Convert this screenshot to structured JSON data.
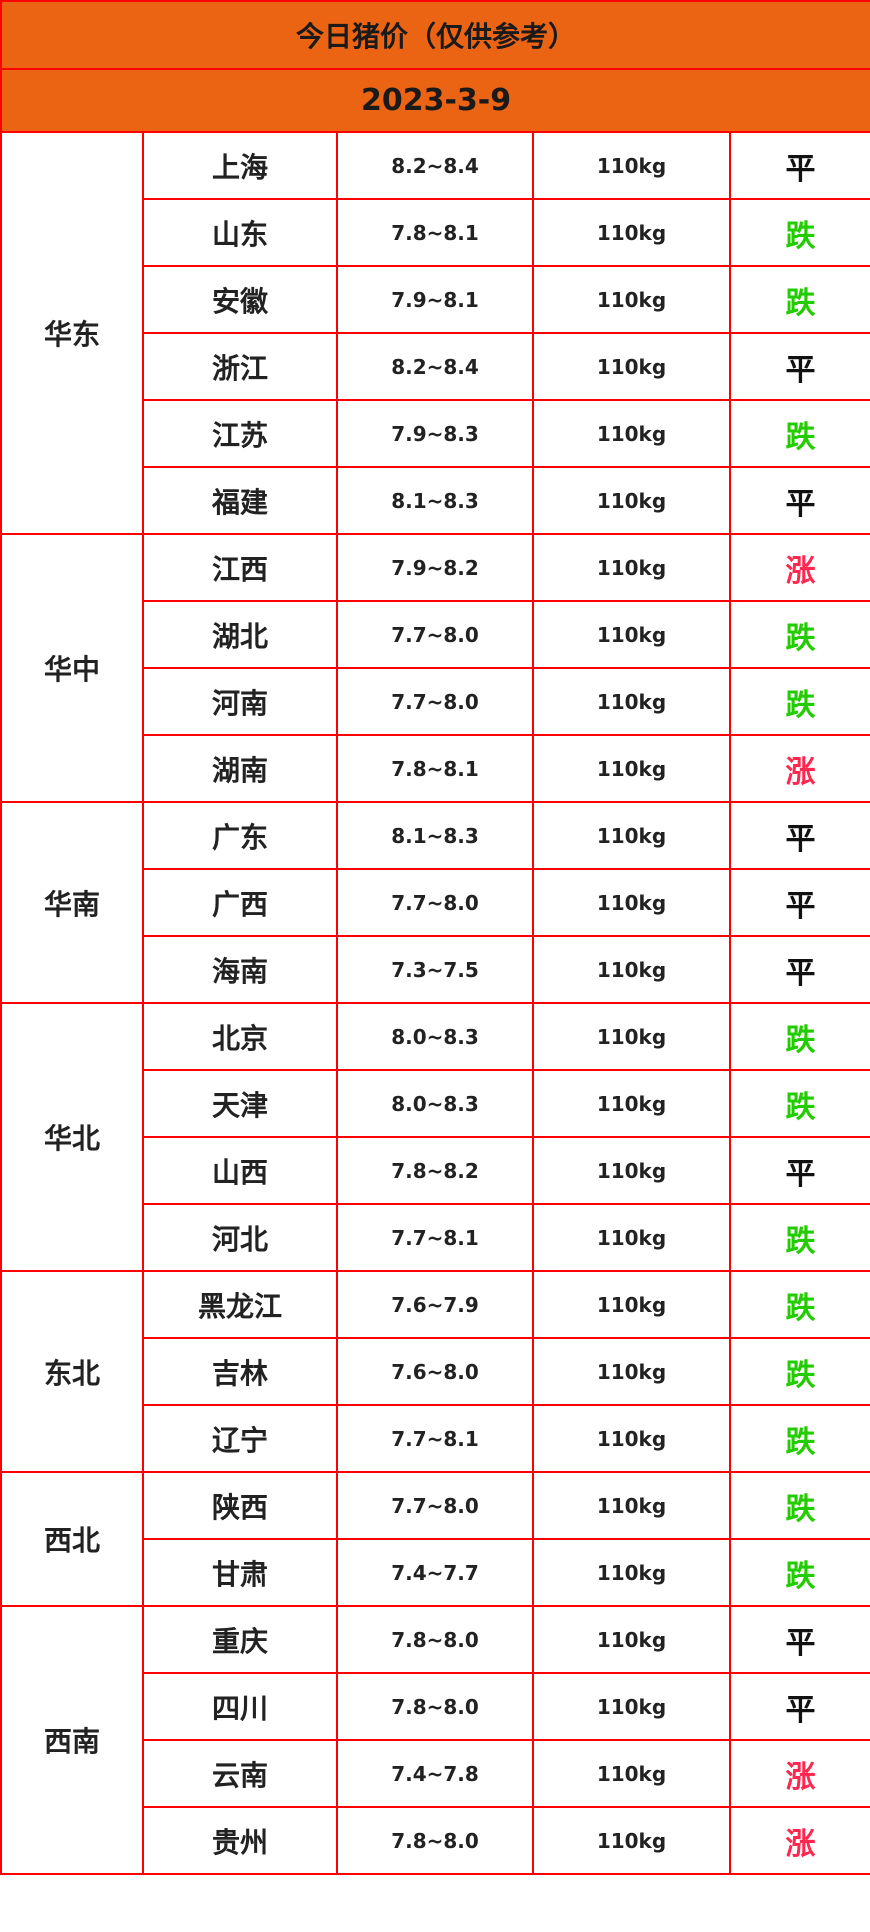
{
  "title": "今日猪价（仅供参考）",
  "date": "2023-3-9",
  "colors": {
    "header_bg": "#ea6414",
    "border": "#ff0000",
    "down": "#22cc00",
    "up": "#ff2850",
    "flat": "#111111"
  },
  "regions": [
    {
      "name": "华东",
      "rows": [
        {
          "province": "上海",
          "price": "8.2~8.4",
          "weight": "110kg",
          "trend": "平"
        },
        {
          "province": "山东",
          "price": "7.8~8.1",
          "weight": "110kg",
          "trend": "跌"
        },
        {
          "province": "安徽",
          "price": "7.9~8.1",
          "weight": "110kg",
          "trend": "跌"
        },
        {
          "province": "浙江",
          "price": "8.2~8.4",
          "weight": "110kg",
          "trend": "平"
        },
        {
          "province": "江苏",
          "price": "7.9~8.3",
          "weight": "110kg",
          "trend": "跌"
        },
        {
          "province": "福建",
          "price": "8.1~8.3",
          "weight": "110kg",
          "trend": "平"
        }
      ]
    },
    {
      "name": "华中",
      "rows": [
        {
          "province": "江西",
          "price": "7.9~8.2",
          "weight": "110kg",
          "trend": "涨"
        },
        {
          "province": "湖北",
          "price": "7.7~8.0",
          "weight": "110kg",
          "trend": "跌"
        },
        {
          "province": "河南",
          "price": "7.7~8.0",
          "weight": "110kg",
          "trend": "跌"
        },
        {
          "province": "湖南",
          "price": "7.8~8.1",
          "weight": "110kg",
          "trend": "涨"
        }
      ]
    },
    {
      "name": "华南",
      "rows": [
        {
          "province": "广东",
          "price": "8.1~8.3",
          "weight": "110kg",
          "trend": "平"
        },
        {
          "province": "广西",
          "price": "7.7~8.0",
          "weight": "110kg",
          "trend": "平"
        },
        {
          "province": "海南",
          "price": "7.3~7.5",
          "weight": "110kg",
          "trend": "平"
        }
      ]
    },
    {
      "name": "华北",
      "rows": [
        {
          "province": "北京",
          "price": "8.0~8.3",
          "weight": "110kg",
          "trend": "跌"
        },
        {
          "province": "天津",
          "price": "8.0~8.3",
          "weight": "110kg",
          "trend": "跌"
        },
        {
          "province": "山西",
          "price": "7.8~8.2",
          "weight": "110kg",
          "trend": "平"
        },
        {
          "province": "河北",
          "price": "7.7~8.1",
          "weight": "110kg",
          "trend": "跌"
        }
      ]
    },
    {
      "name": "东北",
      "rows": [
        {
          "province": "黑龙江",
          "price": "7.6~7.9",
          "weight": "110kg",
          "trend": "跌"
        },
        {
          "province": "吉林",
          "price": "7.6~8.0",
          "weight": "110kg",
          "trend": "跌"
        },
        {
          "province": "辽宁",
          "price": "7.7~8.1",
          "weight": "110kg",
          "trend": "跌"
        }
      ]
    },
    {
      "name": "西北",
      "rows": [
        {
          "province": "陕西",
          "price": "7.7~8.0",
          "weight": "110kg",
          "trend": "跌"
        },
        {
          "province": "甘肃",
          "price": "7.4~7.7",
          "weight": "110kg",
          "trend": "跌"
        }
      ]
    },
    {
      "name": "西南",
      "rows": [
        {
          "province": "重庆",
          "price": "7.8~8.0",
          "weight": "110kg",
          "trend": "平"
        },
        {
          "province": "四川",
          "price": "7.8~8.0",
          "weight": "110kg",
          "trend": "平"
        },
        {
          "province": "云南",
          "price": "7.4~7.8",
          "weight": "110kg",
          "trend": "涨"
        },
        {
          "province": "贵州",
          "price": "7.8~8.0",
          "weight": "110kg",
          "trend": "涨"
        }
      ]
    }
  ]
}
